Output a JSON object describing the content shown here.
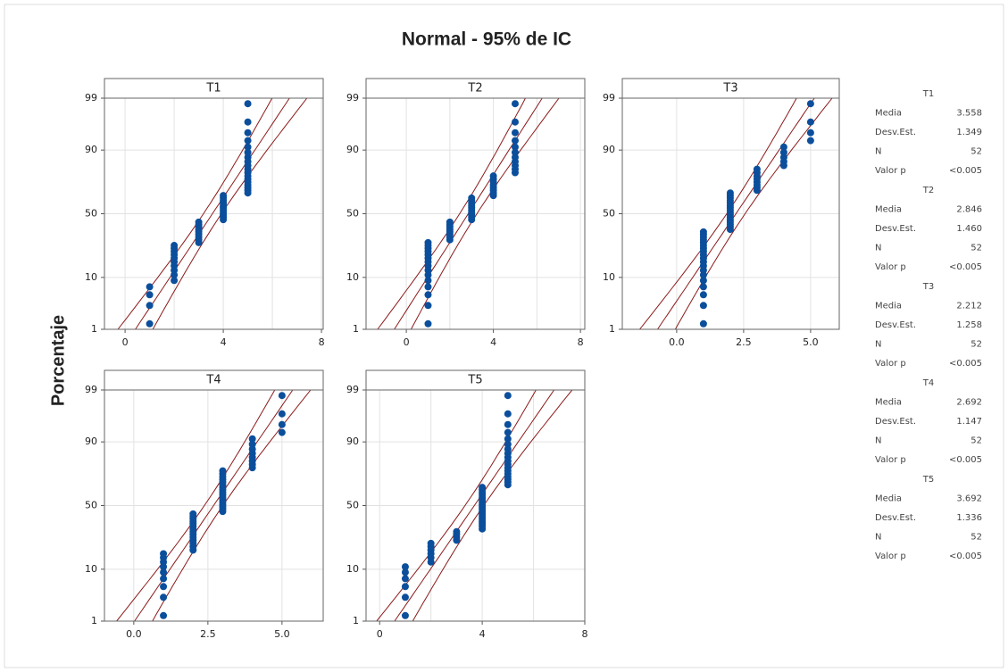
{
  "title": "Normal - 95% de IC",
  "y_label": "Porcentaje",
  "chart_data": [
    {
      "type": "probability",
      "title": "T1",
      "color": "#0b4f9c",
      "line_color": "#8b1a1a",
      "x": [
        1,
        1,
        1,
        1,
        2,
        2,
        2,
        2,
        2,
        2,
        2,
        2,
        2,
        2,
        3,
        3,
        3,
        3,
        3,
        3,
        3,
        3,
        3,
        4,
        4,
        4,
        4,
        4,
        4,
        4,
        4,
        4,
        4,
        4,
        5,
        5,
        5,
        5,
        5,
        5,
        5,
        5,
        5,
        5,
        5,
        5,
        5,
        5,
        5,
        5,
        5,
        5
      ],
      "y": [
        1.34,
        3.24,
        5.15,
        7.06,
        8.97,
        10.88,
        12.79,
        14.69,
        16.6,
        18.51,
        20.42,
        22.33,
        24.24,
        26.15,
        28.05,
        29.96,
        31.87,
        33.78,
        35.69,
        37.6,
        39.5,
        41.41,
        43.32,
        45.23,
        47.14,
        49.05,
        50.95,
        52.86,
        54.77,
        56.68,
        58.59,
        60.5,
        62.4,
        64.31,
        66.22,
        68.13,
        70.04,
        71.95,
        73.85,
        75.76,
        77.67,
        79.58,
        81.49,
        83.4,
        85.31,
        87.21,
        89.12,
        91.03,
        92.94,
        94.85,
        96.76,
        98.66
      ],
      "xlim": [
        -0.84,
        8.07
      ],
      "xticks": [
        0,
        4,
        8
      ],
      "xgrid": [
        0,
        2,
        4,
        6,
        8
      ],
      "ylim": [
        1,
        99
      ],
      "yticks": [
        1,
        10,
        50,
        90,
        99
      ],
      "stats": [
        {
          "name": "Media",
          "value": 3.558
        },
        {
          "name": "Desv.Est.",
          "value": 1.349
        },
        {
          "name": "N",
          "value": 52
        },
        {
          "name": "Valor p",
          "value_label": "<0.005"
        }
      ]
    },
    {
      "type": "probability",
      "title": "T2",
      "color": "#0b4f9c",
      "line_color": "#8b1a1a",
      "x": [
        1,
        1,
        1,
        1,
        1,
        1,
        1,
        1,
        1,
        1,
        1,
        1,
        1,
        1,
        1,
        2,
        2,
        2,
        2,
        2,
        2,
        2,
        2,
        3,
        3,
        3,
        3,
        3,
        3,
        3,
        3,
        3,
        3,
        4,
        4,
        4,
        4,
        4,
        4,
        4,
        4,
        5,
        5,
        5,
        5,
        5,
        5,
        5,
        5,
        5,
        5,
        5
      ],
      "y": [
        1.34,
        3.24,
        5.15,
        7.06,
        8.97,
        10.88,
        12.79,
        14.69,
        16.6,
        18.51,
        20.42,
        22.33,
        24.24,
        26.15,
        28.05,
        29.96,
        31.87,
        33.78,
        35.69,
        37.6,
        39.5,
        41.41,
        43.32,
        45.23,
        47.14,
        49.05,
        50.95,
        52.86,
        54.77,
        56.68,
        58.59,
        60.5,
        62.4,
        64.31,
        66.22,
        68.13,
        70.04,
        71.95,
        73.85,
        75.76,
        77.67,
        79.58,
        81.49,
        83.4,
        85.31,
        87.21,
        89.12,
        91.03,
        92.94,
        94.85,
        96.76,
        98.66
      ],
      "xlim": [
        -1.85,
        8.2
      ],
      "xticks": [
        0,
        4,
        8
      ],
      "xgrid": [
        0,
        2,
        4,
        6,
        8
      ],
      "ylim": [
        1,
        99
      ],
      "yticks": [
        1,
        10,
        50,
        90,
        99
      ],
      "stats": [
        {
          "name": "Media",
          "value": 2.846
        },
        {
          "name": "Desv.Est.",
          "value": 1.46,
          "value_label": "1.460"
        },
        {
          "name": "N",
          "value": 52
        },
        {
          "name": "Valor p",
          "value_label": "<0.005"
        }
      ]
    },
    {
      "type": "probability",
      "title": "T3",
      "color": "#0b4f9c",
      "line_color": "#8b1a1a",
      "x": [
        1,
        1,
        1,
        1,
        1,
        1,
        1,
        1,
        1,
        1,
        1,
        1,
        1,
        1,
        1,
        1,
        1,
        1,
        1,
        2,
        2,
        2,
        2,
        2,
        2,
        2,
        2,
        2,
        2,
        2,
        2,
        2,
        2,
        2,
        2,
        3,
        3,
        3,
        3,
        3,
        3,
        3,
        3,
        4,
        4,
        4,
        4,
        4,
        5,
        5,
        5,
        5
      ],
      "y": [
        1.34,
        3.24,
        5.15,
        7.06,
        8.97,
        10.88,
        12.79,
        14.69,
        16.6,
        18.51,
        20.42,
        22.33,
        24.24,
        26.15,
        28.05,
        29.96,
        31.87,
        33.78,
        35.69,
        37.6,
        39.5,
        41.41,
        43.32,
        45.23,
        47.14,
        49.05,
        50.95,
        52.86,
        54.77,
        56.68,
        58.59,
        60.5,
        62.4,
        64.31,
        66.22,
        68.13,
        70.04,
        71.95,
        73.85,
        75.76,
        77.67,
        79.58,
        81.49,
        83.4,
        85.31,
        87.21,
        89.12,
        91.03,
        92.94,
        94.85,
        96.76,
        98.66
      ],
      "xlim": [
        -2.03,
        6.07
      ],
      "xticks": [
        {
          "value": 0,
          "label": "0.0"
        },
        2.5,
        {
          "value": 5,
          "label": "5.0"
        }
      ],
      "xgrid": [
        0,
        2.5,
        5
      ],
      "ylim": [
        1,
        99
      ],
      "yticks": [
        1,
        10,
        50,
        90,
        99
      ],
      "stats": [
        {
          "name": "Media",
          "value": 2.212
        },
        {
          "name": "Desv.Est.",
          "value": 1.258
        },
        {
          "name": "N",
          "value": 52
        },
        {
          "name": "Valor p",
          "value_label": "<0.005"
        }
      ]
    },
    {
      "type": "probability",
      "title": "T4",
      "color": "#0b4f9c",
      "line_color": "#8b1a1a",
      "x": [
        1,
        1,
        1,
        1,
        1,
        1,
        1,
        1,
        1,
        2,
        2,
        2,
        2,
        2,
        2,
        2,
        2,
        2,
        2,
        2,
        2,
        2,
        2,
        3,
        3,
        3,
        3,
        3,
        3,
        3,
        3,
        3,
        3,
        3,
        3,
        3,
        3,
        3,
        3,
        3,
        4,
        4,
        4,
        4,
        4,
        4,
        4,
        4,
        5,
        5,
        5,
        5
      ],
      "y": [
        1.34,
        3.24,
        5.15,
        7.06,
        8.97,
        10.88,
        12.79,
        14.69,
        16.6,
        18.51,
        20.42,
        22.33,
        24.24,
        26.15,
        28.05,
        29.96,
        31.87,
        33.78,
        35.69,
        37.6,
        39.5,
        41.41,
        43.32,
        45.23,
        47.14,
        49.05,
        50.95,
        52.86,
        54.77,
        56.68,
        58.59,
        60.5,
        62.4,
        64.31,
        66.22,
        68.13,
        70.04,
        71.95,
        73.85,
        75.76,
        77.67,
        79.58,
        81.49,
        83.4,
        85.31,
        87.21,
        89.12,
        91.03,
        92.94,
        94.85,
        96.76,
        98.66
      ],
      "xlim": [
        -0.99,
        6.39
      ],
      "xticks": [
        {
          "value": 0,
          "label": "0.0"
        },
        2.5,
        {
          "value": 5,
          "label": "5.0"
        }
      ],
      "xgrid": [
        0,
        2.5,
        5
      ],
      "ylim": [
        1,
        99
      ],
      "yticks": [
        1,
        10,
        50,
        90,
        99
      ],
      "stats": [
        {
          "name": "Media",
          "value": 2.692
        },
        {
          "name": "Desv.Est.",
          "value": 1.147
        },
        {
          "name": "N",
          "value": 52
        },
        {
          "name": "Valor p",
          "value_label": "<0.005"
        }
      ]
    },
    {
      "type": "probability",
      "title": "T5",
      "color": "#0b4f9c",
      "line_color": "#8b1a1a",
      "x": [
        1,
        1,
        1,
        1,
        1,
        1,
        2,
        2,
        2,
        2,
        2,
        2,
        3,
        3,
        3,
        3,
        4,
        4,
        4,
        4,
        4,
        4,
        4,
        4,
        4,
        4,
        4,
        4,
        4,
        4,
        4,
        4,
        4,
        4,
        5,
        5,
        5,
        5,
        5,
        5,
        5,
        5,
        5,
        5,
        5,
        5,
        5,
        5,
        5,
        5,
        5,
        5
      ],
      "y": [
        1.34,
        3.24,
        5.15,
        7.06,
        8.97,
        10.88,
        12.79,
        14.69,
        16.6,
        18.51,
        20.42,
        22.33,
        24.24,
        26.15,
        28.05,
        29.96,
        31.87,
        33.78,
        35.69,
        37.6,
        39.5,
        41.41,
        43.32,
        45.23,
        47.14,
        49.05,
        50.95,
        52.86,
        54.77,
        56.68,
        58.59,
        60.5,
        62.4,
        64.31,
        66.22,
        68.13,
        70.04,
        71.95,
        73.85,
        75.76,
        77.67,
        79.58,
        81.49,
        83.4,
        85.31,
        87.21,
        89.12,
        91.03,
        92.94,
        94.85,
        96.76,
        98.66
      ],
      "xlim": [
        -0.53,
        8.0
      ],
      "xticks": [
        0,
        4,
        8
      ],
      "xgrid": [
        0,
        2,
        4,
        6,
        8
      ],
      "ylim": [
        1,
        99
      ],
      "yticks": [
        1,
        10,
        50,
        90,
        99
      ],
      "stats": [
        {
          "name": "Media",
          "value": 3.692
        },
        {
          "name": "Desv.Est.",
          "value": 1.336
        },
        {
          "name": "N",
          "value": 52
        },
        {
          "name": "Valor p",
          "value_label": "<0.005"
        }
      ]
    }
  ]
}
